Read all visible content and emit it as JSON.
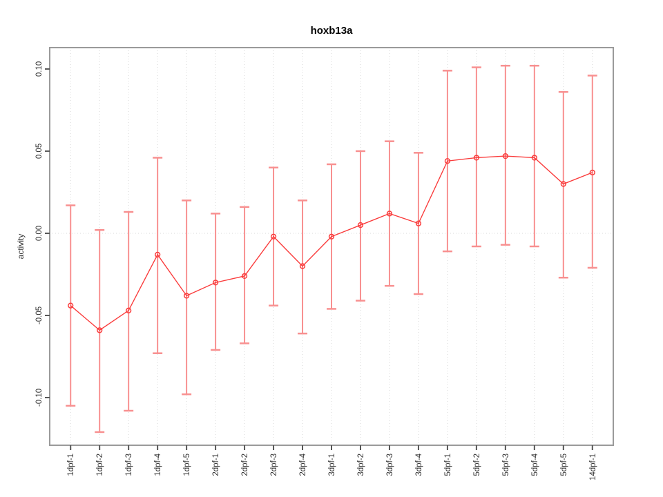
{
  "window": {
    "background": "#ffffff"
  },
  "chart_data": {
    "type": "line",
    "title": "hoxb13a",
    "ylabel": "activity",
    "xlabel": "",
    "legend": "none",
    "grid": "dotted vertical gridline at each category plus dotted horizontal line at y=0",
    "categories": [
      "1dpf-1",
      "1dpf-2",
      "1dpf-3",
      "1dpf-4",
      "1dpf-5",
      "2dpf-1",
      "2dpf-2",
      "2dpf-3",
      "2dpf-4",
      "3dpf-1",
      "3dpf-2",
      "3dpf-3",
      "3dpf-4",
      "5dpf-1",
      "5dpf-2",
      "5dpf-3",
      "5dpf-4",
      "5dpf-5",
      "14dpf-1"
    ],
    "series": [
      {
        "name": "activity",
        "marker": "open-circle",
        "means": [
          -0.044,
          -0.059,
          -0.047,
          -0.013,
          -0.038,
          -0.03,
          -0.026,
          -0.002,
          -0.02,
          -0.002,
          0.005,
          0.012,
          0.006,
          0.044,
          0.046,
          0.047,
          0.046,
          0.03,
          0.037
        ],
        "upper": [
          0.017,
          0.002,
          0.013,
          0.046,
          0.02,
          0.012,
          0.016,
          0.04,
          0.02,
          0.042,
          0.05,
          0.056,
          0.049,
          0.099,
          0.101,
          0.102,
          0.102,
          0.086,
          0.096
        ],
        "lower": [
          -0.105,
          -0.121,
          -0.108,
          -0.073,
          -0.098,
          -0.071,
          -0.067,
          -0.044,
          -0.061,
          -0.046,
          -0.041,
          -0.032,
          -0.037,
          -0.011,
          -0.008,
          -0.007,
          -0.008,
          -0.027,
          -0.021
        ]
      }
    ],
    "yticks": {
      "values": [
        -0.1,
        -0.05,
        0.0,
        0.05,
        0.1
      ],
      "labels": [
        "-0.10",
        "-0.05",
        "0.00",
        "0.05",
        "0.10"
      ]
    },
    "ylim": [
      -0.129,
      0.113
    ],
    "xlim": [
      0.28,
      19.72
    ],
    "colors": {
      "point_line": "#fa3c3c",
      "error_bar": "#f89090",
      "grid": "#d8d8d8",
      "frame": "#9a9a9a",
      "axis": "#555555",
      "tick_label": "#333333",
      "title": "#000000"
    }
  }
}
